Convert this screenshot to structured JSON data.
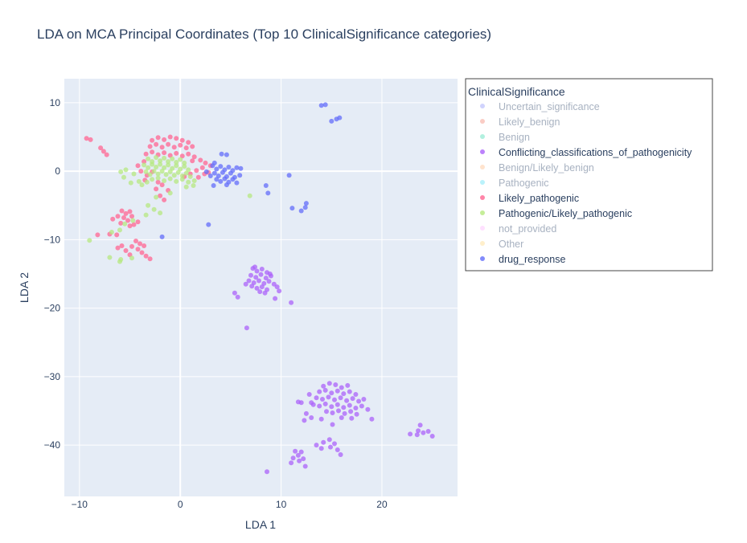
{
  "chart_data": {
    "type": "scatter",
    "title": "LDA on MCA Principal Coordinates (Top 10 ClinicalSignificance categories)",
    "xlabel": "LDA 1",
    "ylabel": "LDA 2",
    "xlim": [
      -11.5,
      27.5
    ],
    "ylim": [
      -47.5,
      13.5
    ],
    "xticks": [
      -10,
      0,
      10,
      20
    ],
    "xtick_labels": [
      "−10",
      "0",
      "10",
      "20"
    ],
    "yticks": [
      10,
      0,
      -10,
      -20,
      -30,
      -40
    ],
    "ytick_labels": [
      "10",
      "0",
      "−10",
      "−20",
      "−30",
      "−40"
    ],
    "grid": true,
    "legend_title": "ClinicalSignificance",
    "legend_placement": "right",
    "series": [
      {
        "name": "Uncertain_significance",
        "color": "#636efa",
        "visible": false,
        "points": []
      },
      {
        "name": "Likely_benign",
        "color": "#ef553b",
        "visible": false,
        "points": []
      },
      {
        "name": "Benign",
        "color": "#00cc96",
        "visible": false,
        "points": []
      },
      {
        "name": "Conflicting_classifications_of_pathogenicity",
        "color": "#ab63fa",
        "visible": true,
        "points": [
          [
            7.2,
            -14.2
          ],
          [
            7.6,
            -14.6
          ],
          [
            8.1,
            -14.3
          ],
          [
            8.6,
            -14.8
          ],
          [
            7.0,
            -15.2
          ],
          [
            7.5,
            -15.5
          ],
          [
            8.0,
            -15.1
          ],
          [
            8.5,
            -15.6
          ],
          [
            9.0,
            -15.3
          ],
          [
            6.8,
            -16.0
          ],
          [
            7.3,
            -16.3
          ],
          [
            7.8,
            -16.0
          ],
          [
            8.3,
            -16.4
          ],
          [
            8.8,
            -16.1
          ],
          [
            9.3,
            -16.5
          ],
          [
            7.1,
            -16.8
          ],
          [
            7.6,
            -17.1
          ],
          [
            8.1,
            -16.9
          ],
          [
            8.6,
            -17.3
          ],
          [
            9.6,
            -16.9
          ],
          [
            7.9,
            -17.6
          ],
          [
            8.4,
            -17.8
          ],
          [
            6.5,
            -16.5
          ],
          [
            8.9,
            -15.0
          ],
          [
            7.4,
            -14.0
          ],
          [
            5.4,
            -17.8
          ],
          [
            5.7,
            -18.4
          ],
          [
            9.8,
            -17.5
          ],
          [
            9.4,
            -18.6
          ],
          [
            11.0,
            -19.2
          ],
          [
            6.6,
            -22.9
          ],
          [
            14.2,
            -31.4
          ],
          [
            14.8,
            -31.0
          ],
          [
            15.4,
            -31.2
          ],
          [
            16.0,
            -31.6
          ],
          [
            16.6,
            -31.3
          ],
          [
            13.8,
            -32.2
          ],
          [
            14.4,
            -32.0
          ],
          [
            15.0,
            -32.4
          ],
          [
            15.6,
            -32.1
          ],
          [
            16.2,
            -32.5
          ],
          [
            16.8,
            -32.2
          ],
          [
            17.4,
            -32.6
          ],
          [
            13.5,
            -33.1
          ],
          [
            14.1,
            -33.3
          ],
          [
            14.7,
            -33.0
          ],
          [
            15.3,
            -33.4
          ],
          [
            15.9,
            -33.1
          ],
          [
            16.5,
            -33.5
          ],
          [
            17.1,
            -33.2
          ],
          [
            17.7,
            -33.6
          ],
          [
            18.2,
            -33.3
          ],
          [
            13.2,
            -34.1
          ],
          [
            13.8,
            -34.3
          ],
          [
            14.4,
            -34.0
          ],
          [
            15.0,
            -34.4
          ],
          [
            15.6,
            -34.1
          ],
          [
            16.2,
            -34.5
          ],
          [
            16.8,
            -34.2
          ],
          [
            17.4,
            -34.6
          ],
          [
            18.0,
            -34.3
          ],
          [
            14.5,
            -35.1
          ],
          [
            15.1,
            -35.3
          ],
          [
            15.7,
            -35.0
          ],
          [
            16.3,
            -35.4
          ],
          [
            16.9,
            -35.1
          ],
          [
            17.5,
            -35.5
          ],
          [
            16.0,
            -36.0
          ],
          [
            12.8,
            -32.6
          ],
          [
            13.0,
            -33.8
          ],
          [
            18.6,
            -34.8
          ],
          [
            11.7,
            -33.7
          ],
          [
            12.0,
            -33.8
          ],
          [
            12.5,
            -35.4
          ],
          [
            12.3,
            -36.4
          ],
          [
            13.0,
            -36.0
          ],
          [
            14.0,
            -36.2
          ],
          [
            15.1,
            -37.0
          ],
          [
            17.0,
            -36.1
          ],
          [
            19.0,
            -36.2
          ],
          [
            22.8,
            -38.4
          ],
          [
            23.6,
            -37.9
          ],
          [
            24.1,
            -38.2
          ],
          [
            24.6,
            -38.0
          ],
          [
            25.0,
            -38.7
          ],
          [
            23.8,
            -37.1
          ],
          [
            23.5,
            -38.5
          ],
          [
            14.2,
            -39.6
          ],
          [
            14.8,
            -39.2
          ],
          [
            15.3,
            -39.8
          ],
          [
            14.0,
            -40.5
          ],
          [
            13.5,
            -40.0
          ],
          [
            15.6,
            -40.7
          ],
          [
            15.9,
            -41.4
          ],
          [
            14.9,
            -40.3
          ],
          [
            11.4,
            -40.9
          ],
          [
            11.7,
            -41.5
          ],
          [
            12.0,
            -41.0
          ],
          [
            11.2,
            -41.9
          ],
          [
            11.8,
            -42.3
          ],
          [
            12.2,
            -42.0
          ],
          [
            11.0,
            -42.6
          ],
          [
            12.4,
            -43.1
          ],
          [
            8.6,
            -43.9
          ]
        ]
      },
      {
        "name": "Benign/Likely_benign",
        "color": "#ffa15a",
        "visible": false,
        "points": []
      },
      {
        "name": "Pathogenic",
        "color": "#19d3f3",
        "visible": false,
        "points": []
      },
      {
        "name": "Likely_pathogenic",
        "color": "#ff6692",
        "visible": true,
        "points": [
          [
            -9.3,
            4.8
          ],
          [
            -8.9,
            4.6
          ],
          [
            -7.9,
            3.4
          ],
          [
            -7.6,
            2.9
          ],
          [
            -7.3,
            2.4
          ],
          [
            -2.8,
            4.5
          ],
          [
            -2.2,
            4.9
          ],
          [
            -1.6,
            4.6
          ],
          [
            -1.0,
            5.0
          ],
          [
            -0.4,
            4.8
          ],
          [
            0.2,
            4.5
          ],
          [
            0.8,
            4.2
          ],
          [
            -3.0,
            3.6
          ],
          [
            -2.4,
            3.9
          ],
          [
            -1.8,
            3.5
          ],
          [
            -1.2,
            3.9
          ],
          [
            -0.6,
            3.5
          ],
          [
            0.0,
            3.8
          ],
          [
            0.6,
            3.4
          ],
          [
            1.2,
            3.6
          ],
          [
            -3.4,
            2.5
          ],
          [
            -2.8,
            2.8
          ],
          [
            -2.2,
            2.4
          ],
          [
            -1.6,
            2.7
          ],
          [
            -1.0,
            2.3
          ],
          [
            -0.4,
            2.6
          ],
          [
            0.2,
            2.2
          ],
          [
            0.8,
            2.5
          ],
          [
            1.4,
            2.1
          ],
          [
            2.0,
            1.6
          ],
          [
            2.5,
            1.2
          ],
          [
            2.2,
            0.5
          ],
          [
            1.6,
            0.1
          ],
          [
            1.0,
            -0.4
          ],
          [
            0.4,
            -0.8
          ],
          [
            1.8,
            -0.9
          ],
          [
            2.4,
            -0.4
          ],
          [
            1.2,
            1.5
          ],
          [
            -3.6,
            1.4
          ],
          [
            -4.2,
            0.8
          ],
          [
            -3.9,
            0.0
          ],
          [
            -3.3,
            -0.6
          ],
          [
            -2.8,
            -0.1
          ],
          [
            -3.5,
            -1.3
          ],
          [
            -1.8,
            -2.0
          ],
          [
            -2.4,
            -2.6
          ],
          [
            -1.2,
            -2.8
          ],
          [
            2.8,
            -0.2
          ],
          [
            3.0,
            0.8
          ],
          [
            -5.8,
            -5.8
          ],
          [
            -5.4,
            -6.2
          ],
          [
            -5.0,
            -5.9
          ],
          [
            -5.6,
            -6.8
          ],
          [
            -5.2,
            -7.2
          ],
          [
            -4.8,
            -6.6
          ],
          [
            -6.2,
            -6.6
          ],
          [
            -6.7,
            -7.0
          ],
          [
            -5.9,
            -7.6
          ],
          [
            -4.6,
            -7.8
          ],
          [
            -4.2,
            -7.4
          ],
          [
            -5.0,
            -8.0
          ],
          [
            -6.3,
            -9.3
          ],
          [
            -7.0,
            -9.2
          ],
          [
            -8.2,
            -9.3
          ],
          [
            -4.4,
            -10.2
          ],
          [
            -4.0,
            -10.6
          ],
          [
            -3.6,
            -10.9
          ],
          [
            -4.8,
            -11.0
          ],
          [
            -4.2,
            -11.4
          ],
          [
            -5.8,
            -10.9
          ],
          [
            -6.2,
            -11.2
          ],
          [
            -5.4,
            -11.6
          ],
          [
            -3.8,
            -11.9
          ],
          [
            -3.4,
            -12.4
          ],
          [
            -5.0,
            -12.2
          ],
          [
            -3.0,
            -12.8
          ],
          [
            -2.2,
            -1.6
          ],
          [
            -2.0,
            -3.6
          ],
          [
            -1.6,
            -4.2
          ]
        ]
      },
      {
        "name": "Pathogenic/Likely_pathogenic",
        "color": "#b6e880",
        "visible": true,
        "points": [
          [
            -3.2,
            1.8
          ],
          [
            -2.8,
            1.4
          ],
          [
            -2.4,
            2.0
          ],
          [
            -2.0,
            1.5
          ],
          [
            -1.6,
            1.9
          ],
          [
            -1.2,
            1.4
          ],
          [
            -0.8,
            1.8
          ],
          [
            -0.4,
            1.3
          ],
          [
            0.0,
            1.7
          ],
          [
            0.4,
            1.2
          ],
          [
            -3.6,
            0.9
          ],
          [
            -3.2,
            0.5
          ],
          [
            -2.8,
            1.0
          ],
          [
            -2.4,
            0.6
          ],
          [
            -2.0,
            1.0
          ],
          [
            -1.6,
            0.5
          ],
          [
            -1.2,
            0.9
          ],
          [
            -0.8,
            0.4
          ],
          [
            -0.4,
            0.8
          ],
          [
            0.0,
            0.3
          ],
          [
            0.4,
            0.7
          ],
          [
            0.8,
            0.2
          ],
          [
            -3.4,
            -0.1
          ],
          [
            -3.0,
            -0.5
          ],
          [
            -2.6,
            0.0
          ],
          [
            -2.2,
            -0.4
          ],
          [
            -1.8,
            0.0
          ],
          [
            -1.4,
            -0.5
          ],
          [
            -1.0,
            -0.1
          ],
          [
            -0.6,
            -0.6
          ],
          [
            -0.2,
            -0.2
          ],
          [
            0.2,
            -0.7
          ],
          [
            0.6,
            -0.3
          ],
          [
            1.0,
            -0.8
          ],
          [
            -2.8,
            -1.2
          ],
          [
            -2.2,
            -1.0
          ],
          [
            -1.6,
            -1.4
          ],
          [
            -1.0,
            -1.1
          ],
          [
            -0.4,
            -1.5
          ],
          [
            0.2,
            -1.2
          ],
          [
            0.8,
            -1.6
          ],
          [
            1.4,
            -1.4
          ],
          [
            -4.6,
            -0.4
          ],
          [
            -4.1,
            -1.5
          ],
          [
            -3.8,
            -2.0
          ],
          [
            -3.3,
            -1.6
          ],
          [
            -5.4,
            0.2
          ],
          [
            -5.9,
            -0.1
          ],
          [
            -5.6,
            -0.9
          ],
          [
            -4.9,
            -1.7
          ],
          [
            1.3,
            -2.1
          ],
          [
            0.6,
            -2.3
          ],
          [
            6.9,
            -3.6
          ],
          [
            -1.0,
            -3.2
          ],
          [
            -2.4,
            -3.8
          ],
          [
            -3.2,
            -5.0
          ],
          [
            -2.6,
            -5.6
          ],
          [
            -2.0,
            -6.1
          ],
          [
            -3.4,
            -6.4
          ],
          [
            -4.7,
            -7.2
          ],
          [
            -5.5,
            -7.7
          ],
          [
            -6.0,
            -8.6
          ],
          [
            -6.8,
            -8.9
          ],
          [
            -9.0,
            -10.1
          ],
          [
            -7.0,
            -12.6
          ],
          [
            -6.0,
            -13.2
          ],
          [
            -5.9,
            -12.9
          ],
          [
            -4.8,
            -12.7
          ]
        ]
      },
      {
        "name": "not_provided",
        "color": "#ff97ff",
        "visible": false,
        "points": []
      },
      {
        "name": "Other",
        "color": "#fecb52",
        "visible": false,
        "points": []
      },
      {
        "name": "drug_response",
        "color": "#636efa",
        "visible": true,
        "points": [
          [
            3.2,
            0.8
          ],
          [
            3.6,
            0.3
          ],
          [
            4.0,
            0.7
          ],
          [
            4.4,
            0.2
          ],
          [
            4.8,
            0.6
          ],
          [
            5.2,
            0.1
          ],
          [
            5.6,
            0.5
          ],
          [
            3.4,
            -0.3
          ],
          [
            3.8,
            -0.7
          ],
          [
            4.2,
            -0.2
          ],
          [
            4.6,
            -0.8
          ],
          [
            5.0,
            -0.3
          ],
          [
            5.4,
            -0.9
          ],
          [
            3.6,
            -1.2
          ],
          [
            4.0,
            -1.5
          ],
          [
            4.4,
            -1.1
          ],
          [
            4.8,
            -1.6
          ],
          [
            5.2,
            -1.2
          ],
          [
            5.6,
            -1.7
          ],
          [
            4.6,
            -2.0
          ],
          [
            3.0,
            -0.7
          ],
          [
            3.4,
            1.2
          ],
          [
            4.1,
            2.5
          ],
          [
            4.6,
            2.4
          ],
          [
            2.6,
            -0.1
          ],
          [
            3.3,
            -2.1
          ],
          [
            5.9,
            -0.6
          ],
          [
            6.0,
            0.4
          ],
          [
            14.0,
            9.6
          ],
          [
            14.4,
            9.7
          ],
          [
            15.0,
            7.3
          ],
          [
            15.5,
            7.6
          ],
          [
            15.8,
            7.8
          ],
          [
            10.8,
            -0.6
          ],
          [
            8.5,
            -2.1
          ],
          [
            8.7,
            -3.2
          ],
          [
            2.8,
            -7.8
          ],
          [
            -1.8,
            -9.6
          ],
          [
            11.1,
            -5.4
          ],
          [
            12.0,
            -5.8
          ],
          [
            12.4,
            -5.3
          ],
          [
            12.5,
            -4.7
          ]
        ]
      }
    ]
  }
}
